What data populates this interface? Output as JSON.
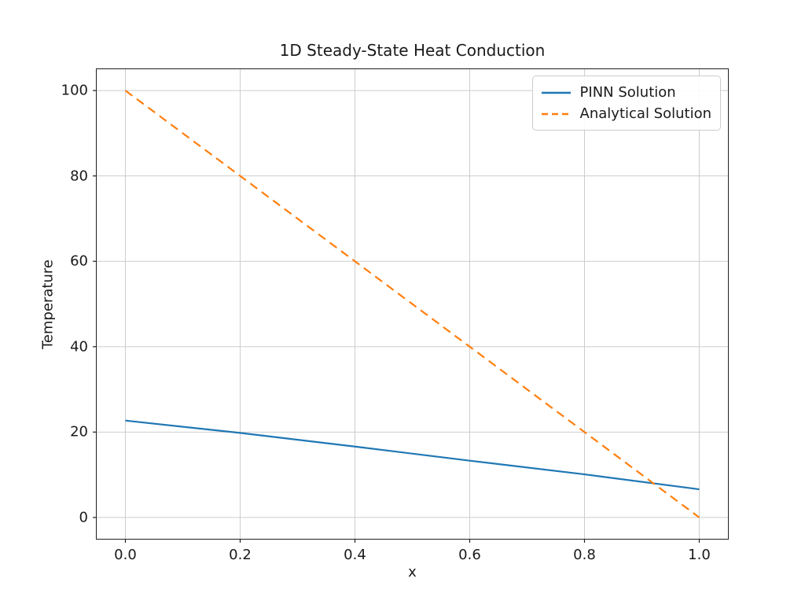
{
  "chart_data": {
    "type": "line",
    "title": "1D Steady-State Heat Conduction",
    "xlabel": "x",
    "ylabel": "Temperature",
    "xlim": [
      -0.05,
      1.05
    ],
    "ylim": [
      -5,
      105
    ],
    "xticks": [
      0.0,
      0.2,
      0.4,
      0.6,
      0.8,
      1.0
    ],
    "xtick_labels": [
      "0.0",
      "0.2",
      "0.4",
      "0.6",
      "0.8",
      "1.0"
    ],
    "yticks": [
      0,
      20,
      40,
      60,
      80,
      100
    ],
    "ytick_labels": [
      "0",
      "20",
      "40",
      "60",
      "80",
      "100"
    ],
    "grid": true,
    "legend_position": "upper right",
    "series": [
      {
        "name": "PINN Solution",
        "color": "#1f77b4",
        "style": "solid",
        "x": [
          0.0,
          0.2,
          0.4,
          0.6,
          0.8,
          1.0
        ],
        "y": [
          22.7,
          19.8,
          16.6,
          13.3,
          10.1,
          6.6
        ]
      },
      {
        "name": "Analytical Solution",
        "color": "#ff7f0e",
        "style": "dashed",
        "x": [
          0.0,
          1.0
        ],
        "y": [
          100,
          0
        ]
      }
    ]
  }
}
